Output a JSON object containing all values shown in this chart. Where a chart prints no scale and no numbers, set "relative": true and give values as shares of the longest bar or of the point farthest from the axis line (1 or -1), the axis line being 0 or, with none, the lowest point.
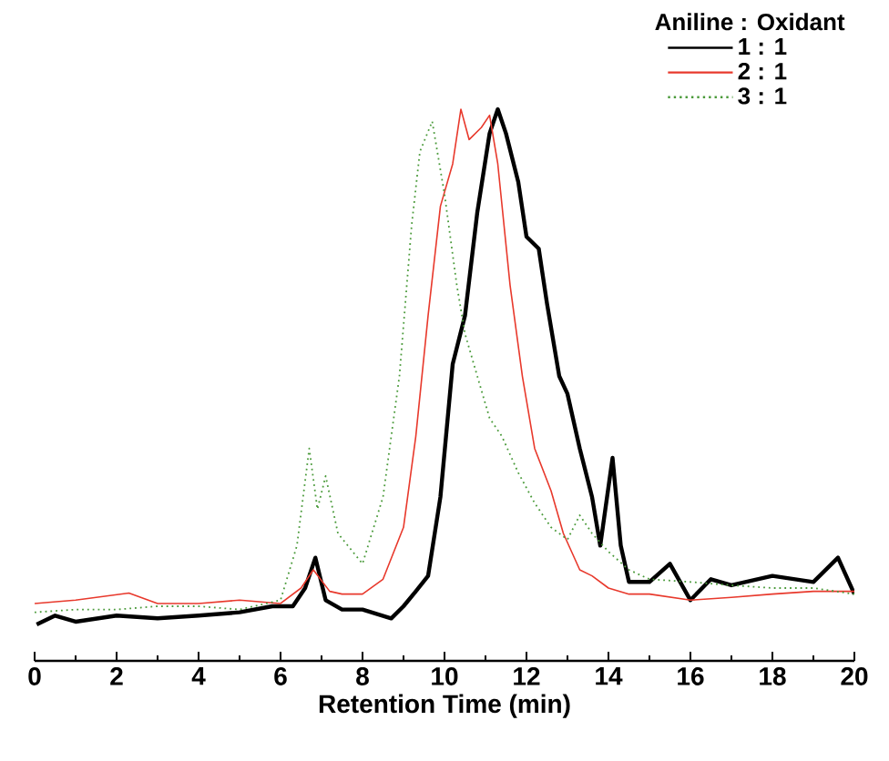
{
  "chart_data": {
    "type": "line",
    "relative": true,
    "xlabel": "Retention Time (min)",
    "legend_title": "Aniline : Oxidant",
    "legend": "top right",
    "xlim": [
      0,
      20
    ],
    "xticks": [
      0,
      2,
      4,
      6,
      8,
      10,
      12,
      14,
      16,
      18,
      20
    ],
    "tick_labels": "x",
    "grid": false,
    "marker": "none",
    "series": [
      {
        "name": "1 : 1",
        "color": "#000000",
        "line_style": "solid",
        "x": [
          0.05,
          0.5,
          1,
          2,
          3,
          4,
          5,
          5.8,
          6.3,
          6.6,
          6.85,
          7.1,
          7.5,
          8,
          8.7,
          9.0,
          9.3,
          9.6,
          9.9,
          10.2,
          10.5,
          10.8,
          11.1,
          11.3,
          11.5,
          11.8,
          12.0,
          12.3,
          12.5,
          12.8,
          13.0,
          13.3,
          13.6,
          13.8,
          14.1,
          14.3,
          14.5,
          15,
          15.5,
          16,
          16.5,
          17,
          18,
          19,
          19.6,
          20
        ],
        "values": [
          0.066,
          0.082,
          0.071,
          0.082,
          0.077,
          0.082,
          0.088,
          0.099,
          0.099,
          0.132,
          0.187,
          0.11,
          0.093,
          0.093,
          0.077,
          0.099,
          0.126,
          0.154,
          0.297,
          0.538,
          0.626,
          0.813,
          0.956,
          1.0,
          0.956,
          0.868,
          0.769,
          0.747,
          0.648,
          0.516,
          0.484,
          0.385,
          0.297,
          0.209,
          0.368,
          0.209,
          0.143,
          0.143,
          0.176,
          0.11,
          0.148,
          0.137,
          0.154,
          0.143,
          0.187,
          0.121
        ]
      },
      {
        "name": "2 : 1",
        "color": "#e8392c",
        "line_style": "solid",
        "x": [
          0,
          1,
          2.3,
          3,
          4,
          5,
          6,
          6.5,
          6.8,
          7.2,
          7.5,
          8,
          8.5,
          9.0,
          9.3,
          9.6,
          9.9,
          10.2,
          10.4,
          10.6,
          10.9,
          11.1,
          11.3,
          11.6,
          11.9,
          12.2,
          12.6,
          12.9,
          13.3,
          13.6,
          14,
          14.5,
          15,
          16,
          17,
          18,
          19,
          20
        ],
        "values": [
          0.104,
          0.11,
          0.123,
          0.104,
          0.104,
          0.11,
          0.104,
          0.132,
          0.165,
          0.126,
          0.121,
          0.121,
          0.148,
          0.242,
          0.407,
          0.626,
          0.824,
          0.901,
          1.0,
          0.945,
          0.967,
          0.989,
          0.901,
          0.681,
          0.516,
          0.385,
          0.308,
          0.231,
          0.165,
          0.154,
          0.132,
          0.121,
          0.121,
          0.11,
          0.115,
          0.121,
          0.126,
          0.126
        ]
      },
      {
        "name": "3 : 1",
        "color": "#4a9a3a",
        "line_style": "dotted",
        "x": [
          0,
          1,
          2,
          3,
          4,
          5,
          6,
          6.4,
          6.7,
          6.9,
          7.1,
          7.4,
          8,
          8.5,
          8.9,
          9.2,
          9.4,
          9.7,
          10.0,
          10.3,
          10.5,
          10.8,
          11.1,
          11.4,
          11.8,
          12.2,
          12.6,
          13.0,
          13.3,
          13.6,
          14,
          14.5,
          15,
          16,
          17,
          18,
          19,
          20
        ],
        "values": [
          0.088,
          0.093,
          0.093,
          0.099,
          0.099,
          0.093,
          0.11,
          0.209,
          0.385,
          0.275,
          0.335,
          0.231,
          0.176,
          0.297,
          0.516,
          0.791,
          0.923,
          0.978,
          0.846,
          0.681,
          0.593,
          0.516,
          0.44,
          0.407,
          0.341,
          0.286,
          0.242,
          0.22,
          0.264,
          0.231,
          0.198,
          0.165,
          0.148,
          0.143,
          0.137,
          0.132,
          0.132,
          0.121
        ]
      }
    ]
  }
}
